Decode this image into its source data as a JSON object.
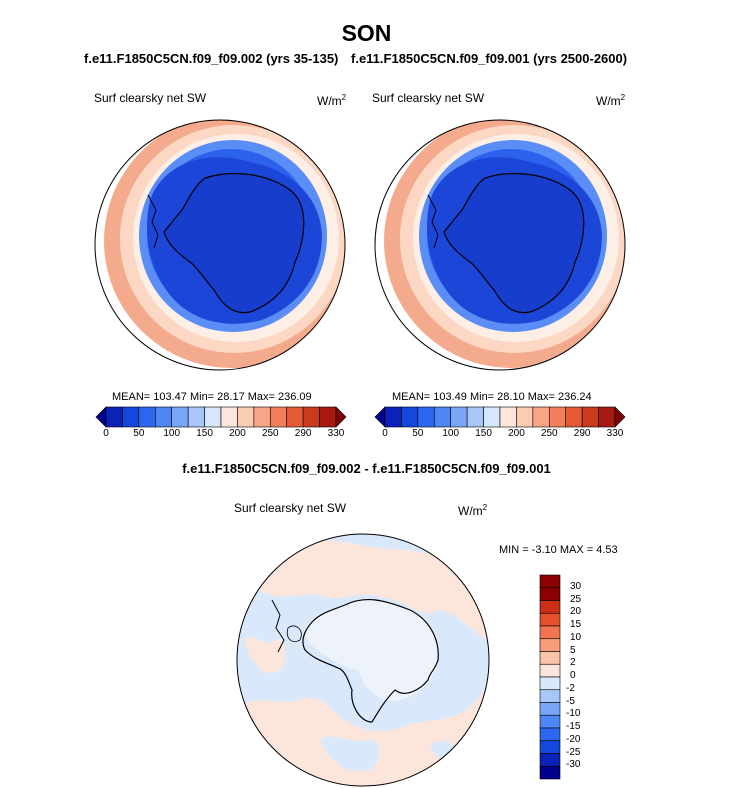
{
  "title": "SON",
  "subtitles": [
    "f.e11.F1850C5CN.f09_f09.002 (yrs 35-135)",
    "f.e11.F1850C5CN.f09_f09.001 (yrs 2500-2600)"
  ],
  "diff_title": "f.e11.F1850C5CN.f09_f09.002 - f.e11.F1850C5CN.f09_f09.001",
  "colors": {
    "abs_scale": [
      "#00008b",
      "#0b22b8",
      "#1448dc",
      "#2b67f0",
      "#4e86f5",
      "#7aa6f7",
      "#a9c6f8",
      "#d6e6fb",
      "#fce6dc",
      "#fbcbb4",
      "#f7a585",
      "#f27e5a",
      "#e65a33",
      "#cc3a1e",
      "#a81a10",
      "#7d0000"
    ],
    "diff_scale": [
      "#00008b",
      "#0b22b8",
      "#1448dc",
      "#2b67f0",
      "#4e86f5",
      "#7aa6f7",
      "#a9c6f8",
      "#d9e9fb",
      "#fce6dc",
      "#fbc3a8",
      "#f79c78",
      "#f27550",
      "#e6502c",
      "#cc2e16",
      "#8b0000"
    ]
  },
  "chart_data": [
    {
      "type": "heatmap",
      "panel": "left",
      "variable": "Surf clearsky net SW",
      "units": "W/m",
      "units_exp": "2",
      "stats": "MEAN= 103.47  Min=  28.17  Max= 236.09",
      "mean": 103.47,
      "min": 28.17,
      "max": 236.09,
      "colorbar_ticks": [
        "0",
        "50",
        "100",
        "150",
        "200",
        "250",
        "290",
        "330"
      ]
    },
    {
      "type": "heatmap",
      "panel": "right",
      "variable": "Surf clearsky net SW",
      "units": "W/m",
      "units_exp": "2",
      "stats": "MEAN= 103.49  Min=  28.10  Max= 236.24",
      "mean": 103.49,
      "min": 28.1,
      "max": 236.24,
      "colorbar_ticks": [
        "0",
        "50",
        "100",
        "150",
        "200",
        "250",
        "290",
        "330"
      ]
    },
    {
      "type": "heatmap",
      "panel": "difference",
      "variable": "Surf clearsky net SW",
      "units": "W/m",
      "units_exp": "2",
      "stats": "MIN =  -3.10 MAX =   4.53",
      "min": -3.1,
      "max": 4.53,
      "colorbar_ticks": [
        "30",
        "25",
        "20",
        "15",
        "10",
        "5",
        "2",
        "0",
        "-2",
        "-5",
        "-10",
        "-15",
        "-20",
        "-25",
        "-30"
      ]
    }
  ]
}
